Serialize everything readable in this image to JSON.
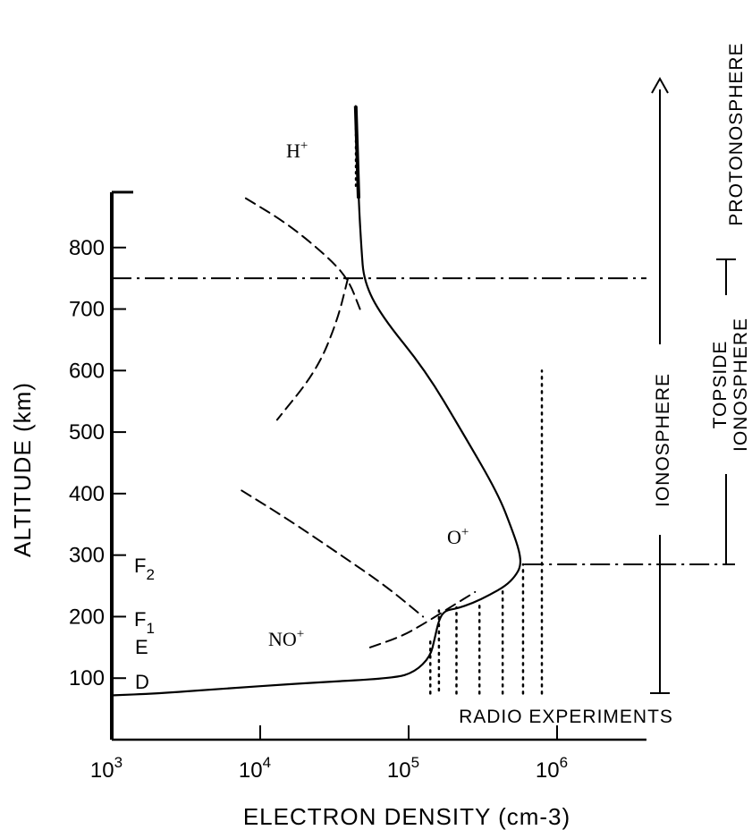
{
  "chart_data": {
    "type": "line",
    "title": "",
    "xlabel": "ELECTRON DENSITY (cm-3)",
    "ylabel": "ALTITUDE (km)",
    "xscale": "log",
    "xlim": [
      1000,
      4000000
    ],
    "ylim": [
      0,
      900
    ],
    "x_ticks": [
      {
        "value": 1000,
        "base": "10",
        "exp": "3"
      },
      {
        "value": 10000,
        "base": "10",
        "exp": "4"
      },
      {
        "value": 100000,
        "base": "10",
        "exp": "5"
      },
      {
        "value": 1000000,
        "base": "10",
        "exp": "6"
      }
    ],
    "y_ticks": [
      100,
      200,
      300,
      400,
      500,
      600,
      700,
      800
    ],
    "grid": false,
    "series": [
      {
        "style": "solid",
        "points": [
          [
            1000,
            72
          ],
          [
            2000,
            75
          ],
          [
            5000,
            82
          ],
          [
            20000,
            92
          ],
          [
            80000,
            100
          ],
          [
            110000,
            110
          ],
          [
            140000,
            135
          ],
          [
            150000,
            165
          ],
          [
            160000,
            195
          ],
          [
            175000,
            210
          ],
          [
            210000,
            213
          ],
          [
            270000,
            222
          ],
          [
            350000,
            235
          ],
          [
            450000,
            250
          ],
          [
            520000,
            265
          ],
          [
            570000,
            282
          ],
          [
            560000,
            305
          ],
          [
            500000,
            340
          ],
          [
            400000,
            400
          ],
          [
            230000,
            500
          ],
          [
            130000,
            600
          ],
          [
            65000,
            690
          ],
          [
            50000,
            745
          ],
          [
            48000,
            800
          ],
          [
            46000,
            880
          ],
          [
            44000,
            1030
          ]
        ]
      },
      {
        "name": "H+",
        "style": "dashed",
        "points": [
          [
            8000,
            880
          ],
          [
            15000,
            840
          ],
          [
            27000,
            790
          ],
          [
            39000,
            750
          ],
          [
            47000,
            700
          ]
        ]
      },
      {
        "style": "dashed",
        "points": [
          [
            39000,
            750
          ],
          [
            33000,
            680
          ],
          [
            24000,
            600
          ],
          [
            13000,
            520
          ]
        ]
      },
      {
        "name": "O+",
        "style": "dashed",
        "points": [
          [
            7500,
            405
          ],
          [
            15000,
            360
          ],
          [
            35000,
            300
          ],
          [
            70000,
            250
          ],
          [
            125000,
            200
          ]
        ]
      },
      {
        "name": "NO+",
        "style": "dashed",
        "points": [
          [
            55000,
            150
          ],
          [
            90000,
            168
          ],
          [
            130000,
            190
          ],
          [
            190000,
            215
          ],
          [
            280000,
            240
          ]
        ]
      },
      {
        "style": "dotted",
        "points": [
          [
            44000,
            900
          ],
          [
            44000,
            1030
          ]
        ]
      }
    ],
    "reference_lines": [
      {
        "style": "dash-dot",
        "y": 750,
        "x_from": 1000,
        "x_to": 4000000
      },
      {
        "style": "dash-dot",
        "y": 285,
        "x_from": 600000,
        "x_to": 40000000
      }
    ],
    "radio_experiments_lines": [
      {
        "x": 140000,
        "y_from": 75,
        "y_to": 165
      },
      {
        "x": 160000,
        "y_from": 80,
        "y_to": 210
      },
      {
        "x": 210000,
        "y_from": 75,
        "y_to": 215
      },
      {
        "x": 300000,
        "y_from": 75,
        "y_to": 225
      },
      {
        "x": 430000,
        "y_from": 75,
        "y_to": 245
      },
      {
        "x": 590000,
        "y_from": 75,
        "y_to": 285
      },
      {
        "x": 790000,
        "y_from": 75,
        "y_to": 600
      }
    ],
    "annotations": {
      "h_plus": "H+",
      "o_plus": "O+",
      "no_plus": "NO+",
      "layer_f2": "F2",
      "layer_f1": "F1",
      "layer_e": "E",
      "layer_d": "D",
      "radio_experiments": "RADIO EXPERIMENTS",
      "ionosphere": "IONOSPHERE",
      "topside_ionosphere_1": "TOPSIDE",
      "topside_ionosphere_2": "IONOSPHERE",
      "protonosphere": "PROTONOSPHERE"
    }
  }
}
